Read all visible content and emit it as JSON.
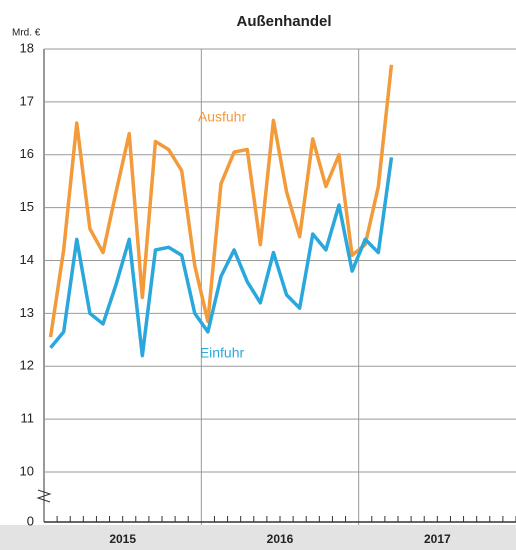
{
  "chart_data": {
    "type": "line",
    "title": "Außenhandel",
    "y_label": "Mrd. €",
    "categories": [
      "2015",
      null,
      null,
      null,
      null,
      null,
      null,
      null,
      null,
      null,
      null,
      null,
      "2016",
      null,
      null,
      null,
      null,
      null,
      null,
      null,
      null,
      null,
      null,
      null,
      "2017",
      null,
      null
    ],
    "series": [
      {
        "name": "Ausfuhr",
        "color": "#f39a3a",
        "values": [
          12.55,
          14.2,
          16.6,
          14.6,
          14.15,
          15.3,
          16.4,
          13.3,
          16.25,
          16.1,
          15.7,
          13.9,
          12.85,
          15.45,
          16.05,
          16.1,
          14.3,
          16.65,
          15.3,
          14.45,
          16.3,
          15.4,
          16.0,
          14.1,
          14.3,
          15.4,
          17.7
        ]
      },
      {
        "name": "Einfuhr",
        "color": "#2aa7dc",
        "values": [
          12.35,
          12.65,
          14.4,
          13.0,
          12.8,
          13.55,
          14.4,
          12.2,
          14.2,
          14.25,
          14.1,
          13.0,
          12.65,
          13.7,
          14.2,
          13.6,
          13.2,
          14.15,
          13.35,
          13.1,
          14.5,
          14.2,
          15.05,
          13.8,
          14.4,
          14.15,
          15.95
        ]
      }
    ],
    "ylim": [
      0,
      18
    ],
    "yticks": [
      0,
      10,
      11,
      12,
      13,
      14,
      15,
      16,
      17,
      18
    ],
    "y_break": [
      0,
      10
    ],
    "grid": true
  }
}
